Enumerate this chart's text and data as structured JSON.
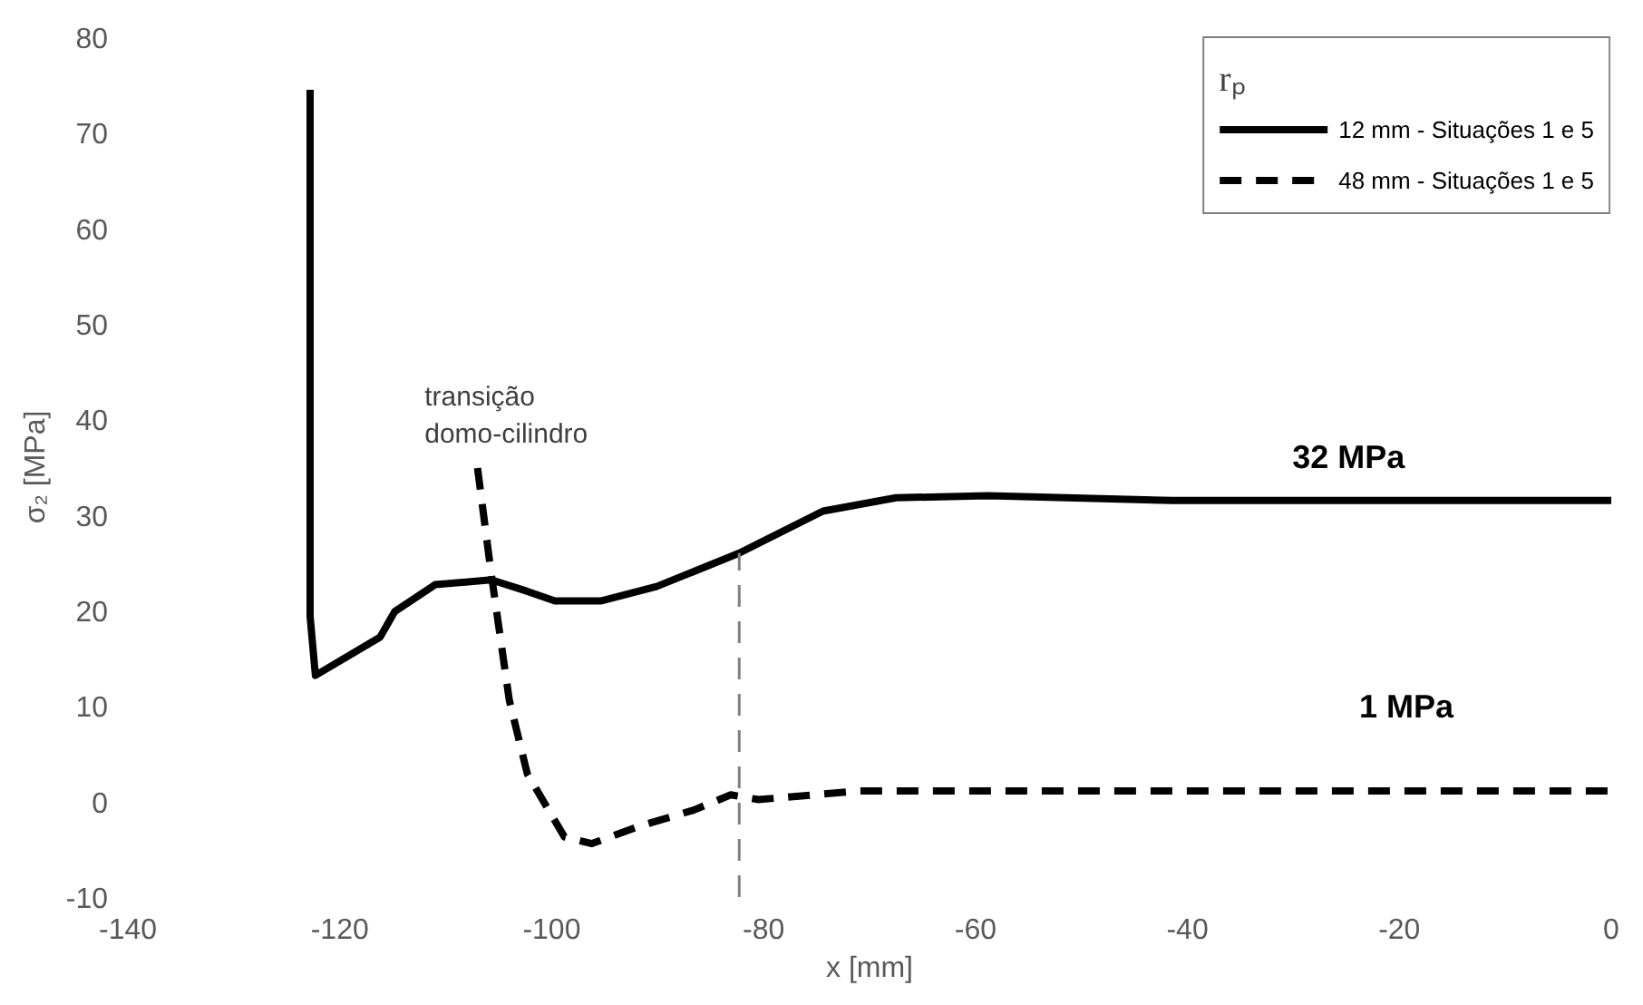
{
  "chart_data": {
    "type": "line",
    "xlabel": "x [mm]",
    "ylabel": "σ₂ [MPa]",
    "legend_title": "rₚ",
    "xlim": [
      -140,
      0
    ],
    "ylim": [
      -10,
      80
    ],
    "xticks": [
      -140,
      -120,
      -100,
      -80,
      -60,
      -40,
      -20,
      0
    ],
    "yticks": [
      -10,
      0,
      10,
      20,
      30,
      40,
      50,
      60,
      70,
      80
    ],
    "grid": false,
    "legend": "top right",
    "marker": "none",
    "series": [
      {
        "name": "12 mm - Situações 1 e 5",
        "color": "#000000",
        "line_style": "solid",
        "x": [
          -122.8,
          -122.8,
          -122.3,
          -116.2,
          -114.8,
          -111,
          -105.7,
          -102.3,
          -99.7,
          -95.3,
          -90.1,
          -82.3,
          -74.4,
          -67.5,
          -58.8,
          -41.4,
          0
        ],
        "values": [
          74.5,
          19.4,
          13.2,
          17.2,
          19.9,
          22.7,
          23.2,
          22,
          21,
          21,
          22.5,
          26,
          30.4,
          31.8,
          32,
          31.5,
          31.5
        ]
      },
      {
        "name": "48 mm - Situações 1 e 5",
        "color": "#000000",
        "line_style": "dashed",
        "x": [
          -107,
          -105.7,
          -104,
          -102.3,
          -98.8,
          -96.2,
          -91.8,
          -86.6,
          -83.1,
          -80.5,
          -71,
          0
        ],
        "values": [
          34.9,
          23.8,
          10.6,
          2.9,
          -3.7,
          -4.4,
          -2.6,
          -0.9,
          0.7,
          0.2,
          1.1,
          1.1
        ]
      }
    ],
    "ref_lines": [
      {
        "axis": "x",
        "value": -82.3,
        "color": "#808080",
        "line_style": "dashed"
      }
    ],
    "annotations": [
      "transição\ndomo-cilindro",
      "32 MPa",
      "1 MPa"
    ]
  }
}
